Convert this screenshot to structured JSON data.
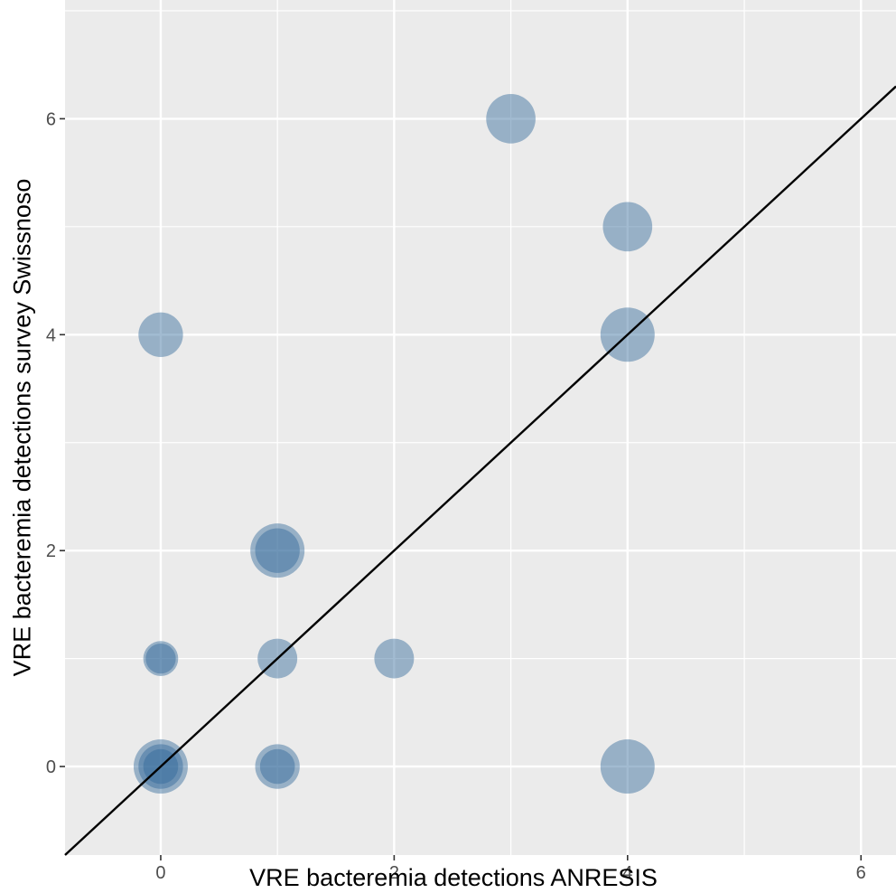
{
  "chart_data": {
    "type": "scatter",
    "title": "",
    "xlabel": "VRE bacteremia detections ANRESIS",
    "ylabel": "VRE bacteremia detections survey Swissnoso",
    "xlim": [
      -0.82,
      6.3
    ],
    "ylim": [
      -0.82,
      7.1
    ],
    "x_ticks": [
      0,
      2,
      4,
      6
    ],
    "y_ticks": [
      0,
      2,
      4,
      6
    ],
    "x_minor_ticks": [
      1,
      3,
      5
    ],
    "y_minor_ticks": [
      1,
      3,
      5,
      7
    ],
    "x_tick_labels": [
      "0",
      "2",
      "4",
      "6"
    ],
    "y_tick_labels": [
      "0",
      "2",
      "4",
      "6"
    ],
    "grid": true,
    "panel_background": "#ebebeb",
    "point_color": "#31689a",
    "point_opacity": 0.45,
    "reference_line": {
      "slope": 1,
      "intercept": 0,
      "color": "#000000"
    },
    "points": [
      {
        "x": 0,
        "y": 0,
        "size": 3
      },
      {
        "x": 0,
        "y": 0,
        "size": 2
      },
      {
        "x": 0,
        "y": 0,
        "size": 1
      },
      {
        "x": 0,
        "y": 1,
        "size": 1
      },
      {
        "x": 0,
        "y": 1,
        "size": 0.5
      },
      {
        "x": 0,
        "y": 4,
        "size": 2
      },
      {
        "x": 1,
        "y": 0,
        "size": 2
      },
      {
        "x": 1,
        "y": 0,
        "size": 1
      },
      {
        "x": 1,
        "y": 1,
        "size": 1.5
      },
      {
        "x": 1,
        "y": 2,
        "size": 3
      },
      {
        "x": 1,
        "y": 2,
        "size": 2
      },
      {
        "x": 2,
        "y": 1,
        "size": 1.5
      },
      {
        "x": 3,
        "y": 6,
        "size": 2.5
      },
      {
        "x": 4,
        "y": 5,
        "size": 2.5
      },
      {
        "x": 4,
        "y": 4,
        "size": 3
      },
      {
        "x": 4,
        "y": 0,
        "size": 3
      }
    ]
  }
}
